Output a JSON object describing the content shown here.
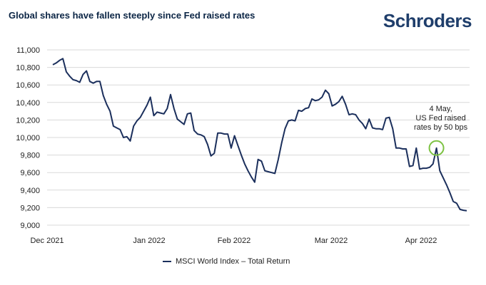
{
  "header": {
    "title": "Global shares have fallen steeply since Fed raised rates",
    "logo_text": "Schroders"
  },
  "chart_data": {
    "type": "line",
    "title": "Global shares have fallen steeply since Fed raised rates",
    "xlabel": "",
    "ylabel": "",
    "ylim": [
      9000,
      11000
    ],
    "yticks": [
      "11,000",
      "10,800",
      "10,600",
      "10,400",
      "10,200",
      "10,000",
      "9,800",
      "9,600",
      "9,400",
      "9,200",
      "9,000"
    ],
    "xticks": [
      "Dec 2021",
      "Jan 2022",
      "Feb 2022",
      "Mar 2022",
      "Apr 2022"
    ],
    "grid": "horizontal",
    "legend": "bottom",
    "colors": {
      "line": "#1b2f5c",
      "grid": "#d9d9d9",
      "highlight": "#7cc242"
    },
    "series": [
      {
        "name": "MSCI World Index – Total Return",
        "values": [
          10830,
          10850,
          10880,
          10900,
          10750,
          10700,
          10660,
          10650,
          10630,
          10720,
          10760,
          10640,
          10620,
          10640,
          10640,
          10480,
          10380,
          10300,
          10130,
          10110,
          10090,
          10000,
          10010,
          9960,
          10130,
          10190,
          10230,
          10300,
          10370,
          10460,
          10250,
          10290,
          10280,
          10270,
          10330,
          10490,
          10330,
          10210,
          10180,
          10150,
          10270,
          10280,
          10080,
          10040,
          10030,
          10010,
          9920,
          9790,
          9820,
          10050,
          10050,
          10040,
          10040,
          9880,
          10020,
          9910,
          9800,
          9700,
          9620,
          9550,
          9490,
          9750,
          9730,
          9620,
          9610,
          9600,
          9590,
          9750,
          9940,
          10100,
          10190,
          10200,
          10190,
          10310,
          10300,
          10330,
          10340,
          10440,
          10420,
          10430,
          10460,
          10540,
          10500,
          10360,
          10380,
          10410,
          10470,
          10380,
          10260,
          10270,
          10260,
          10200,
          10160,
          10100,
          10210,
          10110,
          10100,
          10100,
          10090,
          10220,
          10230,
          10100,
          9880,
          9880,
          9870,
          9870,
          9670,
          9680,
          9880,
          9640,
          9650,
          9650,
          9660,
          9700,
          9880,
          9620,
          9540,
          9460,
          9370,
          9270,
          9250,
          9180,
          9170,
          9165
        ]
      }
    ],
    "annotations": [
      {
        "lines": [
          "4 May,",
          "US Fed raised",
          "rates by 50 bps"
        ],
        "point_index": 114,
        "value": 9880
      }
    ]
  }
}
